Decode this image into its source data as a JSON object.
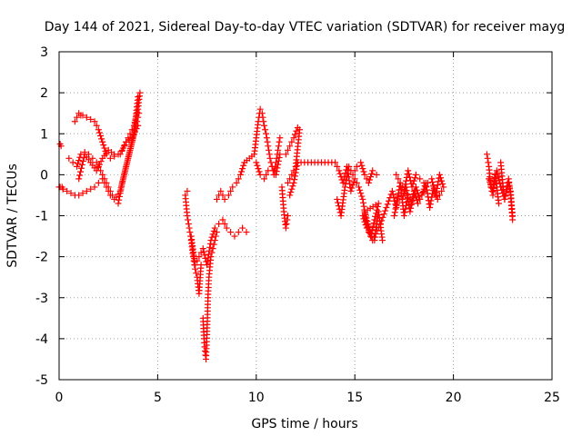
{
  "chart_data": {
    "type": "scatter",
    "title": "Day 144 of 2021, Sidereal Day-to-day VTEC variation (SDTVAR) for receiver mayg",
    "xlabel": "GPS time / hours",
    "ylabel": "SDTVAR / TECUs",
    "xlim": [
      0,
      25
    ],
    "ylim": [
      -5,
      3
    ],
    "x_ticks": [
      "0",
      "5",
      "10",
      "15",
      "20",
      "25"
    ],
    "y_ticks": [
      "-5",
      "-4",
      "-3",
      "-2",
      "-1",
      "0",
      "1",
      "2",
      "3"
    ],
    "grid": true,
    "marker": "+",
    "color": "#ff0000",
    "series": [
      {
        "name": "SDTVAR",
        "x": [
          0.0,
          0.05,
          0.1,
          0.15,
          0.2,
          0.05,
          0.2,
          0.4,
          0.6,
          0.8,
          1.0,
          1.2,
          1.4,
          1.6,
          1.8,
          2.0,
          2.2,
          2.4,
          2.6,
          2.8,
          3.0,
          3.2,
          3.4,
          3.6,
          3.8,
          4.0,
          0.8,
          0.9,
          1.0,
          1.1,
          1.2,
          1.4,
          1.6,
          1.8,
          2.0,
          2.2,
          2.4,
          2.6,
          2.8,
          3.0,
          3.2,
          3.4,
          3.6,
          3.8,
          4.0,
          4.1,
          0.5,
          0.7,
          0.9,
          1.1,
          1.3,
          1.5,
          1.7,
          1.9,
          2.1,
          2.3,
          2.5,
          2.7,
          2.9,
          3.1,
          3.3,
          3.5,
          3.7,
          3.9,
          4.05,
          1.0,
          1.3,
          1.6,
          1.9,
          2.2,
          2.5,
          2.8,
          3.1,
          3.4,
          3.7,
          4.0,
          6.4,
          6.5,
          6.6,
          6.7,
          6.8,
          6.9,
          7.0,
          7.1,
          7.2,
          7.3,
          7.35,
          7.4,
          7.45,
          7.5,
          7.55,
          7.6,
          7.7,
          7.8,
          7.9,
          8.0,
          6.5,
          6.7,
          6.9,
          7.1,
          7.3,
          7.5,
          7.7,
          7.9,
          8.1,
          8.3,
          8.5,
          8.7,
          8.9,
          9.1,
          9.3,
          9.5,
          8.0,
          8.2,
          8.4,
          8.6,
          8.8,
          9.0,
          9.2,
          9.4,
          9.9,
          10.0,
          10.1,
          10.2,
          10.3,
          10.4,
          10.5,
          10.6,
          10.7,
          10.8,
          10.9,
          11.0,
          11.1,
          11.2,
          11.3,
          11.4,
          11.5,
          11.6,
          10.0,
          10.2,
          10.4,
          10.6,
          10.8,
          11.0,
          11.2,
          11.5,
          11.7,
          11.9,
          12.1,
          11.6,
          11.8,
          12.0,
          12.2,
          11.7,
          11.9,
          12.1,
          14.0,
          14.2,
          14.4,
          14.6,
          14.8,
          15.0,
          15.2,
          15.4,
          15.6,
          15.8,
          16.0,
          16.2,
          16.4,
          14.1,
          14.3,
          14.5,
          14.7,
          14.9,
          15.1,
          15.3,
          15.5,
          15.7,
          15.9,
          16.1,
          15.4,
          15.6,
          15.8,
          16.0,
          16.2,
          15.5,
          15.9,
          16.3,
          16.9,
          17.1,
          17.3,
          17.5,
          17.7,
          17.9,
          18.1,
          18.3,
          18.5,
          18.7,
          18.9,
          19.1,
          19.3,
          19.5,
          17.0,
          17.2,
          17.4,
          17.6,
          17.8,
          18.0,
          18.2,
          18.4,
          18.6,
          18.8,
          19.0,
          19.2,
          19.4,
          17.1,
          17.3,
          17.5,
          17.7,
          17.9,
          18.1,
          18.3,
          18.5,
          21.7,
          21.8,
          21.9,
          22.0,
          22.1,
          22.2,
          22.3,
          22.4,
          22.5,
          22.6,
          22.7,
          22.8,
          22.9,
          23.0,
          21.8,
          22.0,
          22.2,
          22.4,
          22.6,
          22.8,
          22.9,
          23.0
        ],
        "y": [
          -0.3,
          0.75,
          0.7,
          -0.3,
          -0.35,
          -0.3,
          -0.35,
          -0.4,
          -0.45,
          -0.5,
          -0.5,
          -0.45,
          -0.4,
          -0.35,
          -0.3,
          -0.2,
          -0.1,
          -0.3,
          -0.5,
          -0.6,
          -0.7,
          -0.2,
          0.2,
          0.6,
          1.0,
          1.9,
          1.3,
          1.4,
          1.5,
          1.45,
          1.45,
          1.4,
          1.35,
          1.3,
          1.1,
          0.8,
          0.5,
          0.4,
          0.45,
          0.5,
          0.6,
          0.8,
          1.0,
          1.2,
          1.6,
          2.0,
          0.4,
          0.3,
          0.2,
          0.5,
          0.55,
          0.5,
          0.4,
          0.3,
          0.1,
          -0.1,
          -0.3,
          -0.5,
          -0.55,
          -0.4,
          0.0,
          0.4,
          0.8,
          1.2,
          1.5,
          -0.1,
          0.5,
          0.3,
          0.1,
          0.4,
          0.6,
          0.5,
          0.5,
          0.8,
          0.9,
          1.2,
          -0.5,
          -1.0,
          -1.3,
          -1.6,
          -2.0,
          -2.3,
          -2.5,
          -2.9,
          -2.2,
          -3.5,
          -4.0,
          -4.3,
          -4.5,
          -3.9,
          -3.0,
          -2.5,
          -2.0,
          -1.8,
          -1.6,
          -1.4,
          -0.4,
          -1.5,
          -2.2,
          -2.0,
          -1.8,
          -2.2,
          -1.6,
          -1.3,
          -1.2,
          -1.1,
          -1.3,
          -1.4,
          -1.5,
          -1.4,
          -1.3,
          -1.4,
          -0.6,
          -0.4,
          -0.6,
          -0.5,
          -0.3,
          -0.2,
          0.0,
          0.3,
          0.5,
          0.9,
          1.3,
          1.6,
          1.5,
          1.2,
          1.0,
          0.7,
          0.4,
          0.2,
          0.0,
          0.3,
          0.6,
          0.9,
          -0.3,
          -0.9,
          -1.3,
          -1.0,
          0.3,
          0.0,
          -0.1,
          0.1,
          0.2,
          0.0,
          0.5,
          0.5,
          0.7,
          0.9,
          1.15,
          -0.2,
          0.0,
          0.2,
          1.1,
          -0.5,
          -0.2,
          0.3,
          0.3,
          0.1,
          -0.2,
          0.2,
          -0.4,
          -0.1,
          -0.3,
          -0.6,
          -1.2,
          -1.5,
          -1.6,
          -0.9,
          -1.6,
          -0.6,
          -1.0,
          -0.3,
          0.2,
          0.0,
          0.2,
          0.3,
          0.0,
          -0.2,
          0.1,
          0.0,
          -1.0,
          -1.3,
          -1.5,
          -1.1,
          -0.7,
          -0.9,
          -1.6,
          -1.2,
          -0.4,
          -0.8,
          -0.2,
          -1.0,
          -0.5,
          -0.7,
          -0.3,
          -0.6,
          -0.4,
          -0.2,
          -0.1,
          -0.5,
          0.0,
          -0.3,
          -1.0,
          -0.5,
          -0.6,
          -0.3,
          -0.9,
          -0.4,
          -0.7,
          -0.5,
          -0.2,
          -0.8,
          -0.3,
          -0.6,
          -0.4,
          0.0,
          -0.2,
          -0.4,
          0.1,
          -0.3,
          0.0,
          -0.1,
          -0.2,
          0.5,
          0.2,
          -0.3,
          -0.5,
          0.0,
          -0.3,
          -0.7,
          0.3,
          -0.2,
          -0.6,
          -0.3,
          -0.1,
          -0.5,
          -1.1,
          -0.1,
          -0.4,
          0.1,
          -0.3,
          -0.6,
          -0.2,
          -0.4,
          -1.0
        ]
      }
    ]
  }
}
